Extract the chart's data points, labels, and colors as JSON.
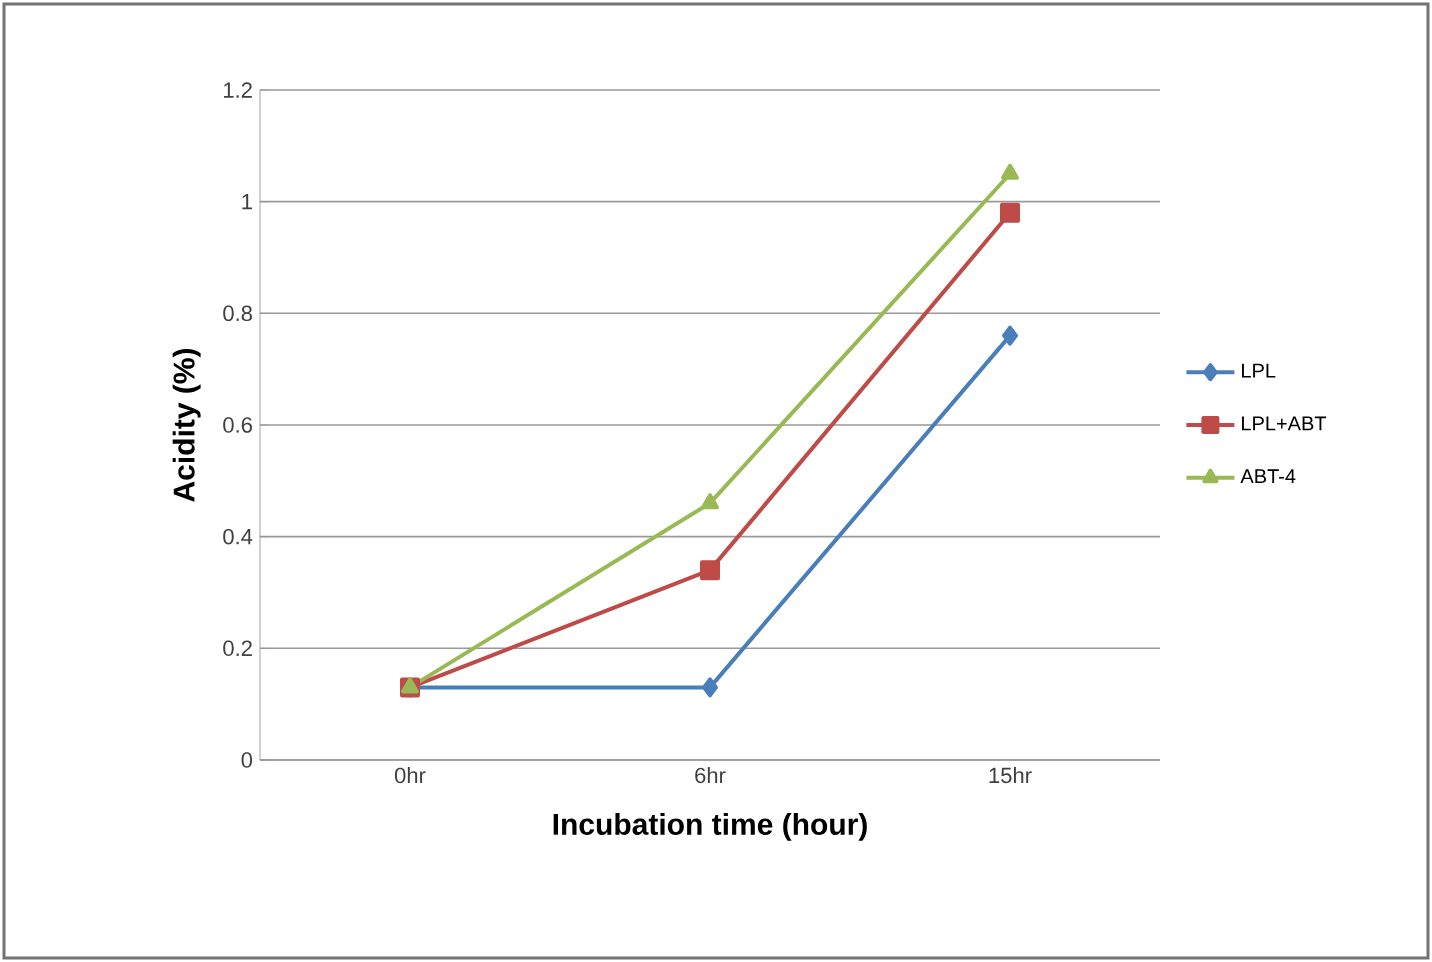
{
  "chart_data": {
    "type": "line",
    "xlabel": "Incubation time (hour)",
    "ylabel": "Acidity (%)",
    "categories": [
      "0hr",
      "6hr",
      "15hr"
    ],
    "series": [
      {
        "name": "LPL",
        "color": "#4a7ebb",
        "marker": "diamond",
        "values": [
          0.13,
          0.13,
          0.76
        ]
      },
      {
        "name": "LPL+ABT",
        "color": "#be4b48",
        "marker": "square",
        "values": [
          0.13,
          0.34,
          0.98
        ]
      },
      {
        "name": "ABT-4",
        "color": "#98b954",
        "marker": "triangle",
        "values": [
          0.13,
          0.46,
          1.05
        ]
      }
    ],
    "ylim": [
      0,
      1.2
    ],
    "yticks": [
      0,
      0.2,
      0.4,
      0.6,
      0.8,
      1,
      1.2
    ],
    "grid": "y",
    "legend": "right"
  }
}
